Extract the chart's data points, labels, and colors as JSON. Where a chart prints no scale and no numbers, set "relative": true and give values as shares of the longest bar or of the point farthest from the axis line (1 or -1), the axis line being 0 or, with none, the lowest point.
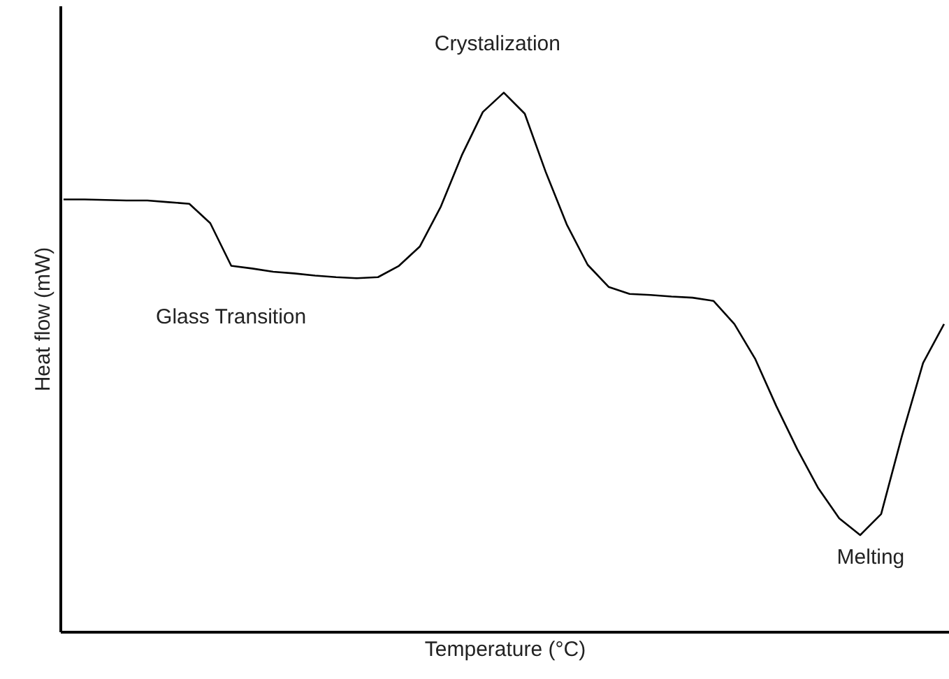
{
  "chart_data": {
    "type": "line",
    "relative": true,
    "xlabel": "Temperature (°C)",
    "ylabel": "Heat flow (mW)",
    "categories": [
      null,
      null,
      null,
      null,
      null,
      null,
      null,
      null,
      null,
      null,
      null,
      null,
      null,
      null,
      null,
      null,
      null,
      null,
      null,
      null,
      null,
      null,
      null,
      null,
      null,
      null,
      null,
      null,
      null,
      null,
      null,
      null,
      null,
      null,
      null,
      null,
      null,
      null,
      null,
      null,
      null,
      null,
      null
    ],
    "series": [
      {
        "color": "#000000",
        "values": [
          0.802,
          0.802,
          0.801,
          0.8,
          0.8,
          0.797,
          0.794,
          0.758,
          0.679,
          0.674,
          0.668,
          0.665,
          0.661,
          0.658,
          0.656,
          0.658,
          0.679,
          0.715,
          0.789,
          0.884,
          0.964,
          1.0,
          0.961,
          0.853,
          0.756,
          0.681,
          0.64,
          0.627,
          0.625,
          0.622,
          0.62,
          0.614,
          0.571,
          0.506,
          0.419,
          0.339,
          0.267,
          0.211,
          0.18,
          0.219,
          0.365,
          0.499,
          0.571
        ]
      }
    ],
    "annotations": [
      "Glass Transition",
      "Crystalization",
      "Melting"
    ],
    "marker": "none",
    "line_style": "solid"
  }
}
